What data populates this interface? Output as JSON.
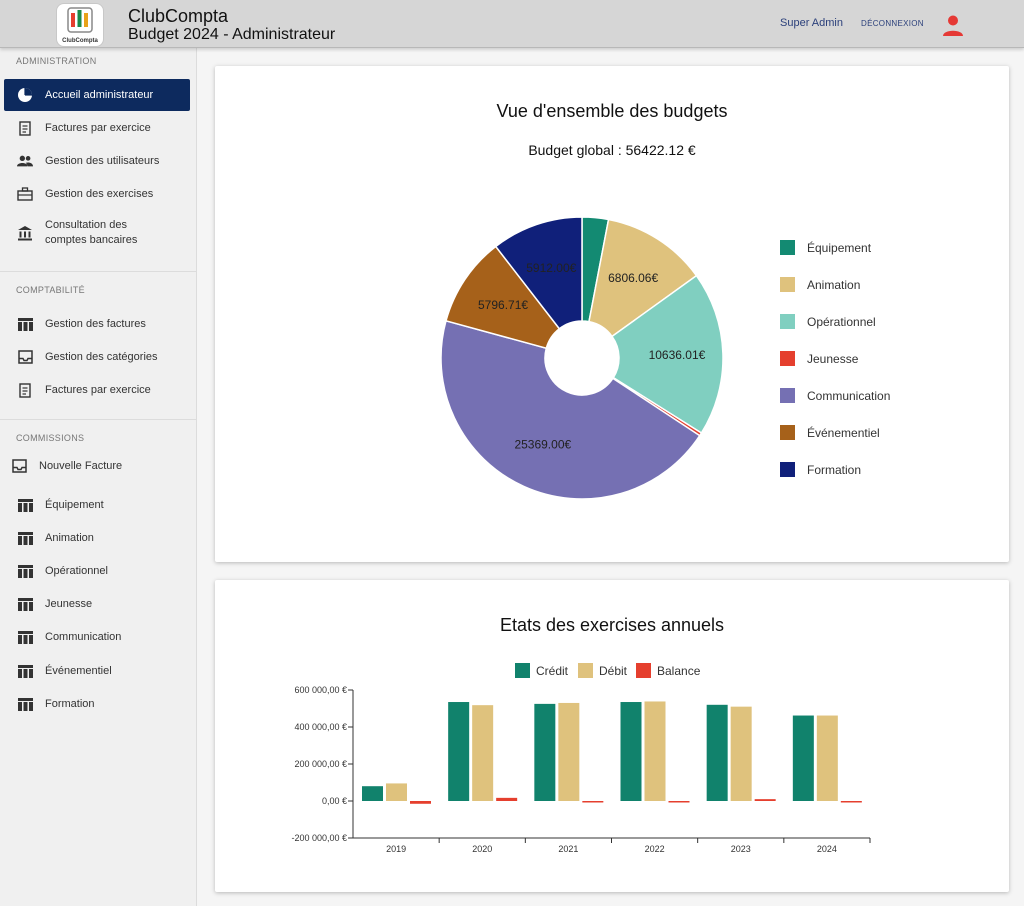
{
  "header": {
    "app_name": "ClubCompta",
    "subtitle": "Budget 2024 - Administrateur",
    "logo_text": "ClubCompta",
    "user_label": "Super Admin",
    "logout_label": "DÉCONNEXION"
  },
  "sidebar": {
    "administration_title": "ADMINISTRATION",
    "admin_items": [
      {
        "label": "Accueil administrateur",
        "icon": "pie-chart-icon"
      },
      {
        "label": "Factures par exercice",
        "icon": "receipt-icon"
      },
      {
        "label": "Gestion des utilisateurs",
        "icon": "people-icon"
      },
      {
        "label": "Gestion des exercises",
        "icon": "briefcase-icon"
      },
      {
        "label": "Consultation des comptes bancaires",
        "icon": "bank-icon"
      }
    ],
    "comptabilite_title": "COMPTABILITÉ",
    "compta_items": [
      {
        "label": "Gestion des factures",
        "icon": "table-icon"
      },
      {
        "label": "Gestion des catégories",
        "icon": "inbox-icon"
      },
      {
        "label": "Factures par exercice",
        "icon": "receipt-icon"
      }
    ],
    "commissions_title": "COMMISSIONS",
    "new_invoice_label": "Nouvelle Facture",
    "commission_items": [
      {
        "label": "Équipement",
        "icon": "table-icon"
      },
      {
        "label": "Animation",
        "icon": "table-icon"
      },
      {
        "label": "Opérationnel",
        "icon": "table-icon"
      },
      {
        "label": "Jeunesse",
        "icon": "table-icon"
      },
      {
        "label": "Communication",
        "icon": "table-icon"
      },
      {
        "label": "Événementiel",
        "icon": "table-icon"
      },
      {
        "label": "Formation",
        "icon": "table-icon"
      }
    ]
  },
  "budget_card": {
    "title": "Vue d'ensemble des budgets",
    "global_label": "Budget global : 56422.12 €"
  },
  "exercises_card": {
    "title": "Etats des exercises annuels"
  },
  "colors": {
    "accent_nav": "#0d2a5e",
    "avatar": "#e53935"
  },
  "chart_data": [
    {
      "type": "pie",
      "variant": "doughnut",
      "legend_position": "right",
      "categories": [
        "Équipement",
        "Animation",
        "Opérationnel",
        "Jeunesse",
        "Communication",
        "Événementiel",
        "Formation"
      ],
      "values": [
        1700,
        6806.06,
        10636.01,
        202.34,
        25369.0,
        5796.71,
        5912.0
      ],
      "data_labels": [
        "",
        "6806.06€",
        "10636.01€",
        "",
        "25369.00€",
        "5796.71€",
        "5912.00€"
      ],
      "colors": [
        "#138a72",
        "#dfc27d",
        "#80cfc0",
        "#e53f2e",
        "#7570b3",
        "#a6611a",
        "#10207a"
      ]
    },
    {
      "type": "bar",
      "legend_position": "top",
      "categories": [
        "2019",
        "2020",
        "2021",
        "2022",
        "2023",
        "2024"
      ],
      "series": [
        {
          "name": "Crédit",
          "color": "#11826c",
          "values": [
            80000,
            535000,
            525000,
            535000,
            520000,
            462000
          ]
        },
        {
          "name": "Débit",
          "color": "#dfc27d",
          "values": [
            95000,
            518000,
            530000,
            538000,
            510000,
            462000
          ]
        },
        {
          "name": "Balance",
          "color": "#e53f2e",
          "values": [
            -15000,
            17000,
            -5000,
            -3000,
            10000,
            0
          ]
        }
      ],
      "yticks": [
        "600 000,00 €",
        "400 000,00 €",
        "200 000,00 €",
        "0,00 €",
        "-200 000,00 €"
      ],
      "ytick_values": [
        600000,
        400000,
        200000,
        0,
        -200000
      ],
      "ylim": [
        -200000,
        600000
      ]
    }
  ]
}
